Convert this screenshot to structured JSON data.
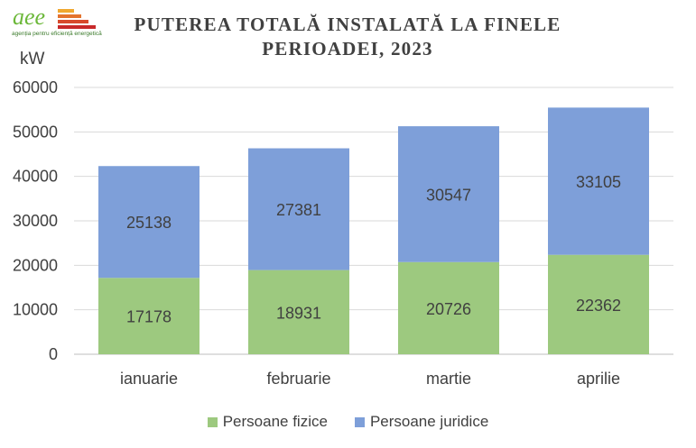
{
  "logo": {
    "text": "aee",
    "subtitle": "agenția pentru eficiență energetică",
    "bar_colors": [
      "#f0a830",
      "#e4732e",
      "#d84a2c",
      "#c8292a"
    ]
  },
  "title_line1": "PUTEREA TOTALĂ INSTALATĂ LA FINELE",
  "title_line2": "PERIOADEI, 2023",
  "unit": "kW",
  "chart_data": {
    "type": "bar",
    "stacked": true,
    "categories": [
      "ianuarie",
      "februarie",
      "martie",
      "aprilie"
    ],
    "series": [
      {
        "name": "Persoane fizice",
        "values": [
          17178,
          18931,
          20726,
          22362
        ],
        "color": "#9dc97f"
      },
      {
        "name": "Persoane juridice",
        "values": [
          25138,
          27381,
          30547,
          33105
        ],
        "color": "#7e9fd9"
      }
    ],
    "ylim": [
      0,
      60000
    ],
    "yticks": [
      0,
      10000,
      20000,
      30000,
      40000,
      50000,
      60000
    ],
    "grid": true,
    "legend": "bottom",
    "ylabel": "kW"
  }
}
